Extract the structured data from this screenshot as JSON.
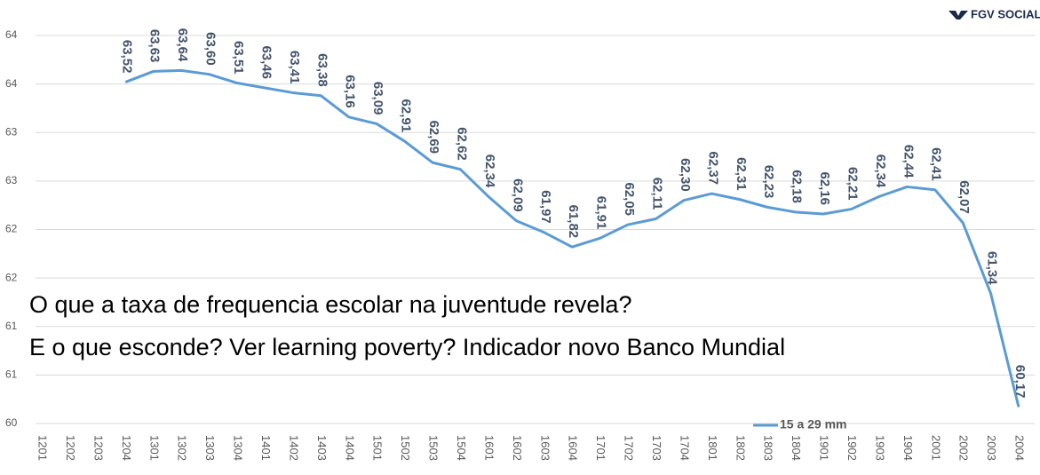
{
  "chart_data": {
    "type": "line",
    "logo": "FGV SOCIAL",
    "annotations": [
      "O que a taxa de frequencia escolar na juventude revela?",
      "E o que esconde? Ver learning poverty? Indicador novo Banco Mundial"
    ],
    "categories": [
      "1201",
      "1202",
      "1203",
      "1204",
      "1301",
      "1302",
      "1303",
      "1304",
      "1401",
      "1402",
      "1403",
      "1404",
      "1501",
      "1502",
      "1503",
      "1504",
      "1601",
      "1602",
      "1603",
      "1604",
      "1701",
      "1702",
      "1703",
      "1704",
      "1801",
      "1802",
      "1803",
      "1804",
      "1901",
      "1902",
      "1903",
      "1904",
      "2001",
      "2002",
      "2003",
      "2004"
    ],
    "series": [
      {
        "name": "15 a 29 mm",
        "color": "#5b9bd5",
        "values": [
          null,
          null,
          null,
          63.52,
          63.63,
          63.64,
          63.6,
          63.51,
          63.46,
          63.41,
          63.38,
          63.16,
          63.09,
          62.91,
          62.69,
          62.62,
          62.34,
          62.09,
          61.97,
          61.82,
          61.91,
          62.05,
          62.11,
          62.3,
          62.37,
          62.31,
          62.23,
          62.18,
          62.16,
          62.21,
          62.34,
          62.44,
          62.41,
          62.07,
          61.34,
          60.17
        ],
        "value_labels": [
          null,
          null,
          null,
          "63,52",
          "63,63",
          "63,64",
          "63,60",
          "63,51",
          "63,46",
          "63,41",
          "63,38",
          "63,16",
          "63,09",
          "62,91",
          "62,69",
          "62,62",
          "62,34",
          "62,09",
          "61,97",
          "61,82",
          "61,91",
          "62,05",
          "62,11",
          "62,30",
          "62,37",
          "62,31",
          "62,23",
          "62,18",
          "62,16",
          "62,21",
          "62,34",
          "62,44",
          "62,41",
          "62,07",
          "61,34",
          "60,17"
        ]
      }
    ],
    "ylim": [
      60,
      64
    ],
    "yticks": [
      60,
      {
        "value": 60.5,
        "label": "61"
      },
      61,
      {
        "value": 61.5,
        "label": "62"
      },
      62,
      {
        "value": 62.5,
        "label": "63"
      },
      63,
      {
        "value": 63.5,
        "label": "64"
      },
      64
    ],
    "grid": true,
    "legend": "bottom-right"
  }
}
